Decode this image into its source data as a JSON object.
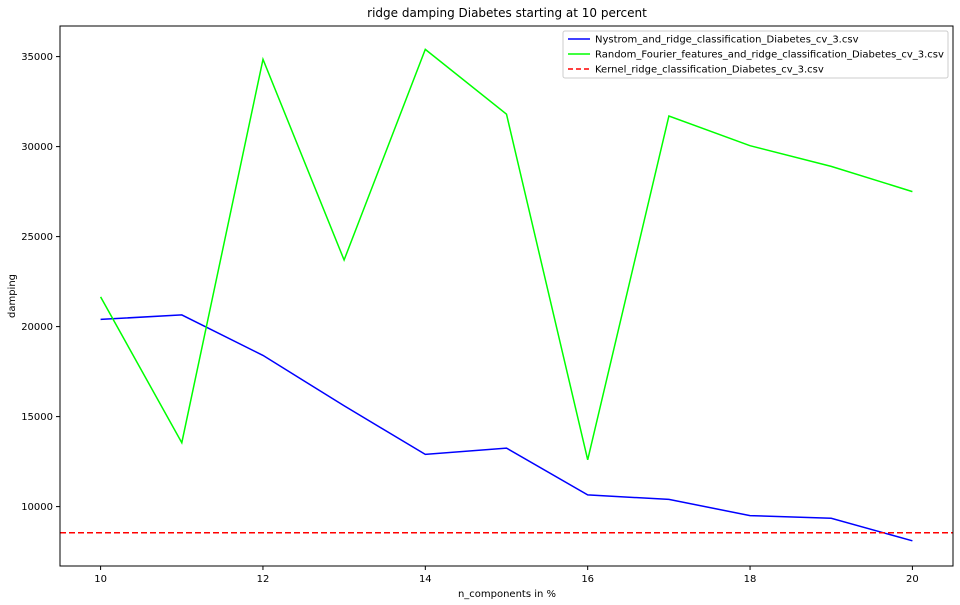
{
  "chart_data": {
    "type": "line",
    "title": "ridge damping Diabetes starting at 10 percent",
    "xlabel": "n_components in %",
    "ylabel": "damping",
    "xlim": [
      9.5,
      20.5
    ],
    "ylim": [
      6700,
      36700
    ],
    "xticks": [
      10,
      12,
      14,
      16,
      18,
      20
    ],
    "yticks": [
      10000,
      15000,
      20000,
      25000,
      30000,
      35000
    ],
    "grid": false,
    "legend_position": "top-right",
    "series": [
      {
        "name": "Nystrom_and_ridge_classification_Diabetes_cv_3.csv",
        "color": "#0000ff",
        "style": "solid",
        "x": [
          10,
          11,
          12,
          13,
          14,
          15,
          16,
          17,
          18,
          19,
          20
        ],
        "y": [
          20400,
          20650,
          18400,
          15600,
          12900,
          13250,
          10650,
          10400,
          9500,
          9350,
          8100
        ]
      },
      {
        "name": "Random_Fourier_features_and_ridge_classification_Diabetes_cv_3.csv",
        "color": "#00ff00",
        "style": "solid",
        "x": [
          10,
          11,
          12,
          13,
          14,
          15,
          16,
          17,
          18,
          19,
          20
        ],
        "y": [
          21650,
          13550,
          34850,
          23700,
          35400,
          31800,
          12600,
          31700,
          30050,
          28900,
          27500
        ]
      },
      {
        "name": "Kernel_ridge_classification_Diabetes_cv_3.csv",
        "color": "#ff0000",
        "style": "dashed",
        "hline": 8550
      }
    ]
  }
}
